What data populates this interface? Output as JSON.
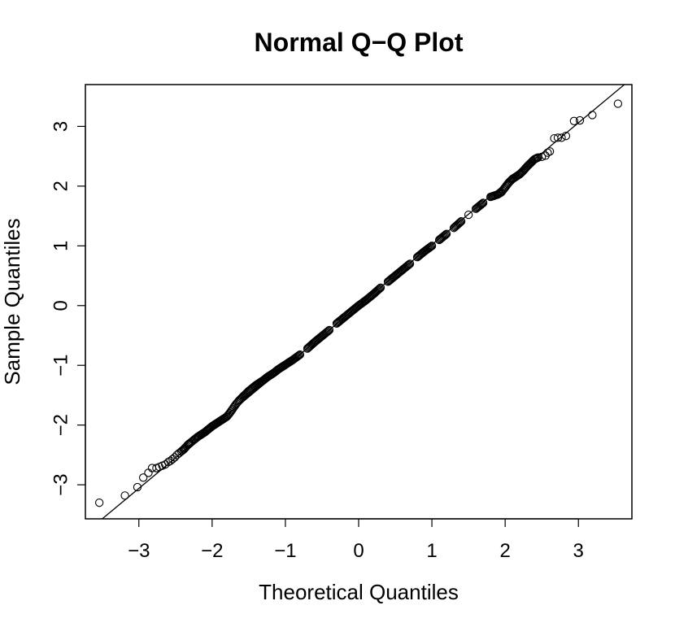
{
  "chart_data": {
    "type": "scatter",
    "title": "Normal Q−Q Plot",
    "xlabel": "Theoretical Quantiles",
    "ylabel": "Sample Quantiles",
    "xlim": [
      -3.73,
      3.73
    ],
    "ylim": [
      -3.57,
      3.7
    ],
    "xticks": [
      -3,
      -2,
      -1,
      0,
      1,
      2,
      3
    ],
    "xtick_labels": [
      "−3",
      "−2",
      "−1",
      "0",
      "1",
      "2",
      "3"
    ],
    "yticks": [
      -3,
      -2,
      -1,
      0,
      1,
      2,
      3
    ],
    "ytick_labels": [
      "−3",
      "−2",
      "−1",
      "0",
      "1",
      "2",
      "3"
    ],
    "grid": false,
    "marker": "open-circle",
    "reference_line": {
      "intercept": 0.0,
      "slope": 1.02
    },
    "series": [
      {
        "points": [
          [
            -3.54,
            -3.3
          ],
          [
            -3.19,
            -3.18
          ],
          [
            -3.02,
            -3.04
          ],
          [
            -2.94,
            -2.88
          ],
          [
            -2.87,
            -2.8
          ],
          [
            -2.82,
            -2.72
          ],
          [
            -2.76,
            -2.72
          ],
          [
            -2.72,
            -2.7
          ],
          [
            -2.68,
            -2.68
          ],
          [
            -2.64,
            -2.66
          ],
          [
            -2.6,
            -2.62
          ],
          [
            -2.57,
            -2.6
          ],
          [
            -2.54,
            -2.57
          ],
          [
            -2.51,
            -2.54
          ],
          [
            -2.48,
            -2.5
          ],
          [
            -2.45,
            -2.47
          ],
          [
            -2.42,
            -2.44
          ],
          [
            -2.39,
            -2.41
          ],
          [
            -2.36,
            -2.37
          ],
          [
            -2.33,
            -2.33
          ],
          [
            -2.3,
            -2.3
          ],
          [
            -2.27,
            -2.27
          ],
          [
            -2.24,
            -2.24
          ],
          [
            -2.2,
            -2.2
          ],
          [
            -2.15,
            -2.16
          ],
          [
            -2.1,
            -2.12
          ],
          [
            -2.05,
            -2.07
          ],
          [
            -2.0,
            -2.02
          ],
          [
            -1.95,
            -1.98
          ],
          [
            -1.9,
            -1.94
          ],
          [
            -1.85,
            -1.9
          ],
          [
            -1.8,
            -1.86
          ],
          [
            -1.76,
            -1.8
          ],
          [
            -1.72,
            -1.73
          ],
          [
            -1.68,
            -1.66
          ],
          [
            -1.64,
            -1.6
          ],
          [
            -1.6,
            -1.55
          ],
          [
            -1.55,
            -1.49
          ],
          [
            -1.5,
            -1.43
          ],
          [
            -1.45,
            -1.38
          ],
          [
            -1.4,
            -1.33
          ],
          [
            -1.35,
            -1.29
          ],
          [
            -1.3,
            -1.25
          ],
          [
            -1.25,
            -1.2
          ],
          [
            -1.2,
            -1.16
          ],
          [
            -1.15,
            -1.12
          ],
          [
            -1.1,
            -1.07
          ],
          [
            -1.05,
            -1.03
          ],
          [
            -1.0,
            -0.99
          ],
          [
            -0.9,
            -0.91
          ],
          [
            -0.8,
            -0.82
          ],
          [
            -0.7,
            -0.72
          ],
          [
            -0.6,
            -0.61
          ],
          [
            -0.5,
            -0.51
          ],
          [
            -0.4,
            -0.41
          ],
          [
            -0.3,
            -0.3
          ],
          [
            -0.2,
            -0.2
          ],
          [
            -0.1,
            -0.1
          ],
          [
            0.0,
            0.0
          ],
          [
            0.1,
            0.09
          ],
          [
            0.2,
            0.19
          ],
          [
            0.3,
            0.3
          ],
          [
            0.4,
            0.4
          ],
          [
            0.5,
            0.5
          ],
          [
            0.6,
            0.6
          ],
          [
            0.7,
            0.7
          ],
          [
            0.8,
            0.81
          ],
          [
            0.9,
            0.91
          ],
          [
            1.0,
            1.0
          ],
          [
            1.1,
            1.1
          ],
          [
            1.2,
            1.2
          ],
          [
            1.3,
            1.3
          ],
          [
            1.4,
            1.41
          ],
          [
            1.5,
            1.52
          ],
          [
            1.6,
            1.62
          ],
          [
            1.7,
            1.72
          ],
          [
            1.8,
            1.82
          ],
          [
            1.9,
            1.86
          ],
          [
            1.95,
            1.9
          ],
          [
            2.0,
            1.98
          ],
          [
            2.05,
            2.06
          ],
          [
            2.1,
            2.12
          ],
          [
            2.15,
            2.16
          ],
          [
            2.2,
            2.2
          ],
          [
            2.25,
            2.26
          ],
          [
            2.3,
            2.33
          ],
          [
            2.35,
            2.39
          ],
          [
            2.4,
            2.45
          ],
          [
            2.45,
            2.48
          ],
          [
            2.5,
            2.49
          ],
          [
            2.55,
            2.51
          ],
          [
            2.58,
            2.56
          ],
          [
            2.61,
            2.58
          ],
          [
            2.67,
            2.8
          ],
          [
            2.72,
            2.81
          ],
          [
            2.77,
            2.81
          ],
          [
            2.83,
            2.84
          ],
          [
            2.94,
            3.09
          ],
          [
            3.02,
            3.1
          ],
          [
            3.19,
            3.19
          ],
          [
            3.54,
            3.38
          ]
        ]
      }
    ]
  }
}
